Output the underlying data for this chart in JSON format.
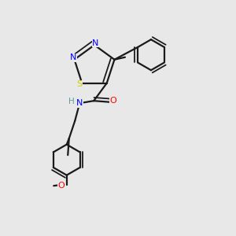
{
  "background_color": "#e8e8e8",
  "bond_color": "#1a1a1a",
  "colors": {
    "N": "#0000ff",
    "S": "#cccc00",
    "O": "#ff0000",
    "H": "#5f9ea0",
    "C": "#1a1a1a"
  },
  "lw": 1.6,
  "lw2": 3.0
}
